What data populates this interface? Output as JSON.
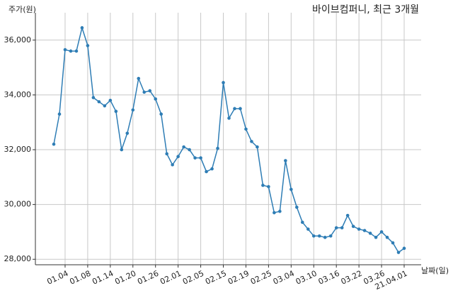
{
  "chart_data": {
    "type": "line",
    "title": "바이브컴퍼니, 최근 3개월",
    "y_label": "주가(원)",
    "x_label": "날짜(일)",
    "categories": [
      null,
      null,
      "01.04",
      null,
      null,
      null,
      "01.08",
      null,
      null,
      null,
      "01.14",
      null,
      null,
      null,
      "01.20",
      null,
      null,
      null,
      "01.26",
      null,
      null,
      null,
      "02.01",
      null,
      null,
      null,
      "02.05",
      null,
      null,
      null,
      "02.15",
      null,
      null,
      null,
      "02.19",
      null,
      null,
      null,
      "02.25",
      null,
      null,
      null,
      "03.04",
      null,
      null,
      null,
      "03.10",
      null,
      null,
      null,
      "03.16",
      null,
      null,
      null,
      "03.22",
      null,
      null,
      null,
      "03.26",
      null,
      null,
      null,
      "21.04.01"
    ],
    "series": [
      {
        "name": "주가",
        "color": "#2e7db5",
        "values": [
          32200,
          33300,
          35650,
          35600,
          35600,
          36450,
          35800,
          33900,
          33750,
          33600,
          33800,
          33400,
          32000,
          32600,
          33450,
          34600,
          34100,
          34150,
          33850,
          33300,
          31850,
          31450,
          31750,
          32100,
          32000,
          31700,
          31700,
          31200,
          31300,
          32050,
          34450,
          33150,
          33500,
          33500,
          32750,
          32300,
          32100,
          30700,
          30650,
          29700,
          29750,
          31600,
          30550,
          29900,
          29350,
          29100,
          28850,
          28850,
          28800,
          28850,
          29150,
          29150,
          29600,
          29200,
          29100,
          29050,
          28950,
          28800,
          29000,
          28800,
          28600,
          28250,
          28400
        ]
      }
    ],
    "ylim": [
      27800,
      37000
    ],
    "yticks": [
      {
        "value": 28000,
        "label": "28,000"
      },
      {
        "value": 30000,
        "label": "30,000"
      },
      {
        "value": 32000,
        "label": "32,000"
      },
      {
        "value": 34000,
        "label": "34,000"
      },
      {
        "value": 36000,
        "label": "36,000"
      }
    ],
    "grid": true
  }
}
